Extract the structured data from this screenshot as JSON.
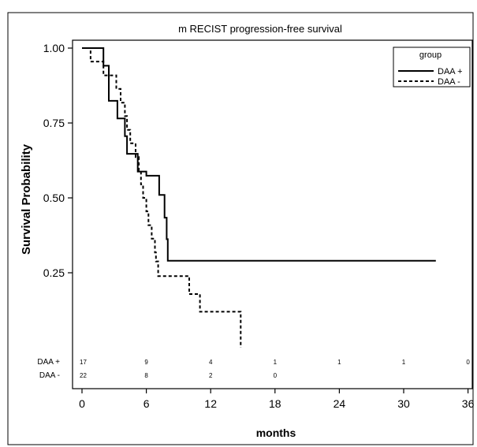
{
  "chart_data": {
    "type": "line",
    "title": "m  RECIST progression-free survival",
    "xlabel": "months",
    "ylabel": "Survival Probability",
    "xlim": [
      0,
      42
    ],
    "ylim": [
      0,
      1.0
    ],
    "x_ticks": [
      0,
      6,
      12,
      18,
      24,
      30,
      36,
      42
    ],
    "y_ticks": [
      0.25,
      0.5,
      0.75,
      1.0
    ],
    "y_tick_labels": [
      "0.25",
      "0.50",
      "0.75",
      "1.00"
    ],
    "grid": false,
    "legend": {
      "title": "group",
      "placement": "top-right"
    },
    "series": [
      {
        "name": "DAA +",
        "style": "solid",
        "color": "#000000",
        "steps": [
          [
            0,
            1.0
          ],
          [
            1.5,
            1.0
          ],
          [
            2.0,
            0.941
          ],
          [
            2.5,
            0.824
          ],
          [
            3.0,
            0.824
          ],
          [
            3.3,
            0.765
          ],
          [
            4.0,
            0.765
          ],
          [
            4.0,
            0.706
          ],
          [
            4.2,
            0.647
          ],
          [
            5.0,
            0.647
          ],
          [
            5.2,
            0.588
          ],
          [
            6.0,
            0.588
          ],
          [
            6.0,
            0.574
          ],
          [
            7.0,
            0.574
          ],
          [
            7.2,
            0.51
          ],
          [
            7.5,
            0.51
          ],
          [
            7.7,
            0.434
          ],
          [
            7.9,
            0.362
          ],
          [
            8.0,
            0.29
          ],
          [
            33.0,
            0.29
          ]
        ]
      },
      {
        "name": "DAA -",
        "style": "dashed",
        "color": "#000000",
        "steps": [
          [
            0,
            1.0
          ],
          [
            0.8,
            1.0
          ],
          [
            0.8,
            0.955
          ],
          [
            1.8,
            0.955
          ],
          [
            2.0,
            0.909
          ],
          [
            3.0,
            0.909
          ],
          [
            3.2,
            0.864
          ],
          [
            3.6,
            0.818
          ],
          [
            4.0,
            0.773
          ],
          [
            4.2,
            0.727
          ],
          [
            4.5,
            0.682
          ],
          [
            5.0,
            0.636
          ],
          [
            5.3,
            0.591
          ],
          [
            5.5,
            0.545
          ],
          [
            5.7,
            0.5
          ],
          [
            6.0,
            0.455
          ],
          [
            6.2,
            0.409
          ],
          [
            6.5,
            0.364
          ],
          [
            6.8,
            0.318
          ],
          [
            6.9,
            0.288
          ],
          [
            7.1,
            0.239
          ],
          [
            10.0,
            0.239
          ],
          [
            10.0,
            0.179
          ],
          [
            10.8,
            0.179
          ],
          [
            11.0,
            0.12
          ],
          [
            14.8,
            0.12
          ],
          [
            14.8,
            0.0
          ]
        ]
      }
    ],
    "at_risk": {
      "times": [
        0,
        6,
        12,
        18,
        24,
        30,
        36
      ],
      "rows": [
        {
          "label": "DAA +",
          "counts": [
            "17",
            "9",
            "4",
            "1",
            "1",
            "1",
            "0"
          ]
        },
        {
          "label": "DAA -",
          "counts": [
            "22",
            "8",
            "2",
            "0",
            "",
            "",
            ""
          ]
        }
      ]
    }
  }
}
